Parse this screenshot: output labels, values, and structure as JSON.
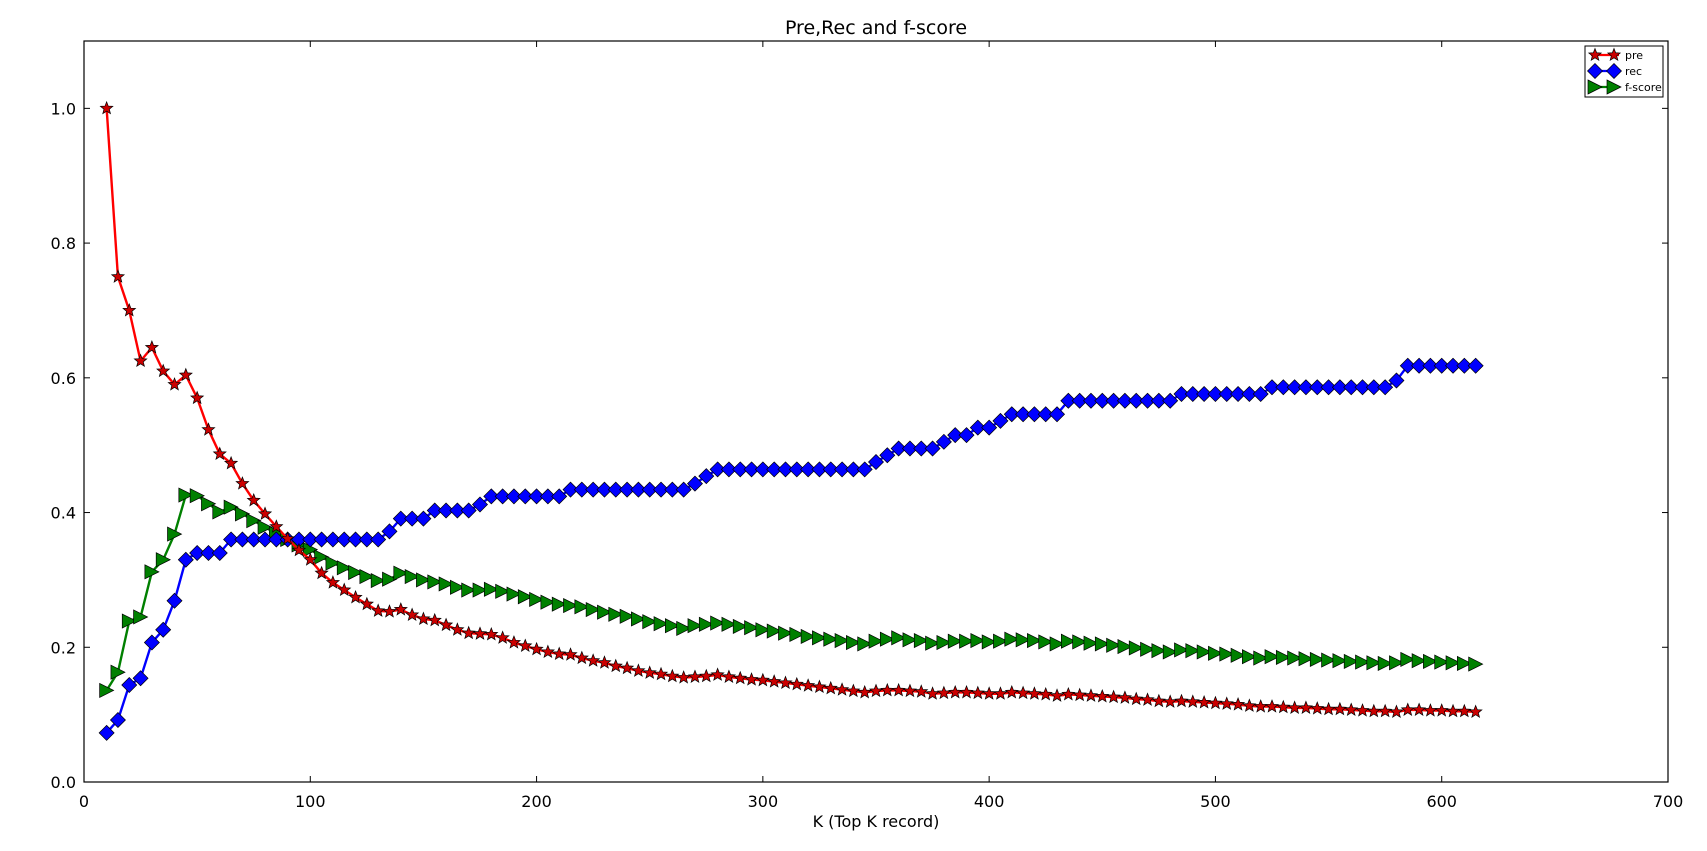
{
  "chart_data": {
    "type": "line",
    "title": "Pre,Rec and f-score",
    "xlabel": "K (Top K record)",
    "ylabel": "",
    "xlim": [
      0,
      700
    ],
    "ylim": [
      0,
      1.1
    ],
    "x_ticks": [
      0,
      100,
      200,
      300,
      400,
      500,
      600,
      700
    ],
    "y_ticks": [
      0.0,
      0.2,
      0.4,
      0.6,
      0.8,
      1.0
    ],
    "grid": false,
    "legend_position": "top-right",
    "x": [
      10,
      15,
      20,
      25,
      30,
      35,
      40,
      45,
      50,
      55,
      60,
      65,
      70,
      75,
      80,
      85,
      90,
      95,
      100,
      105,
      110,
      115,
      120,
      125,
      130,
      135,
      140,
      145,
      150,
      155,
      160,
      165,
      170,
      175,
      180,
      185,
      190,
      195,
      200,
      205,
      210,
      215,
      220,
      225,
      230,
      235,
      240,
      245,
      250,
      255,
      260,
      265,
      270,
      275,
      280,
      285,
      290,
      295,
      300,
      305,
      310,
      315,
      320,
      325,
      330,
      335,
      340,
      345,
      350,
      355,
      360,
      365,
      370,
      375,
      380,
      385,
      390,
      395,
      400,
      405,
      410,
      415,
      420,
      425,
      430,
      435,
      440,
      445,
      450,
      455,
      460,
      465,
      470,
      475,
      480,
      485,
      490,
      495,
      500,
      505,
      510,
      515,
      520,
      525,
      530,
      535,
      540,
      545,
      550,
      555,
      560,
      565,
      570,
      575,
      580,
      585,
      590,
      595,
      600,
      605,
      610,
      615
    ],
    "series": [
      {
        "name": "pre",
        "color": "#ff0000",
        "marker": "star",
        "marker_color": "#cc0000",
        "values": [
          1.0,
          0.75,
          0.7,
          0.625,
          0.645,
          0.61,
          0.59,
          0.604,
          0.57,
          0.523,
          0.487,
          0.473,
          0.443,
          0.418,
          0.398,
          0.379,
          0.361,
          0.344,
          0.33,
          0.31,
          0.296,
          0.285,
          0.274,
          0.264,
          0.254,
          0.253,
          0.256,
          0.248,
          0.242,
          0.24,
          0.233,
          0.226,
          0.221,
          0.22,
          0.219,
          0.214,
          0.207,
          0.202,
          0.197,
          0.193,
          0.19,
          0.189,
          0.184,
          0.18,
          0.177,
          0.172,
          0.169,
          0.165,
          0.162,
          0.16,
          0.157,
          0.155,
          0.156,
          0.157,
          0.159,
          0.156,
          0.154,
          0.152,
          0.151,
          0.149,
          0.147,
          0.145,
          0.143,
          0.141,
          0.139,
          0.137,
          0.135,
          0.133,
          0.135,
          0.136,
          0.136,
          0.135,
          0.134,
          0.131,
          0.132,
          0.133,
          0.133,
          0.132,
          0.131,
          0.131,
          0.133,
          0.132,
          0.131,
          0.13,
          0.128,
          0.13,
          0.129,
          0.128,
          0.127,
          0.126,
          0.125,
          0.123,
          0.122,
          0.12,
          0.119,
          0.12,
          0.119,
          0.118,
          0.117,
          0.116,
          0.115,
          0.113,
          0.112,
          0.112,
          0.111,
          0.11,
          0.11,
          0.109,
          0.108,
          0.108,
          0.107,
          0.106,
          0.105,
          0.105,
          0.104,
          0.107,
          0.107,
          0.106,
          0.106,
          0.105,
          0.105,
          0.104
        ]
      },
      {
        "name": "rec",
        "color": "#0000ff",
        "marker": "diamond",
        "marker_color": "#0000ff",
        "values": [
          0.073,
          0.092,
          0.144,
          0.154,
          0.207,
          0.226,
          0.269,
          0.33,
          0.34,
          0.34,
          0.34,
          0.36,
          0.36,
          0.36,
          0.36,
          0.36,
          0.36,
          0.36,
          0.36,
          0.36,
          0.36,
          0.36,
          0.36,
          0.36,
          0.36,
          0.372,
          0.391,
          0.391,
          0.391,
          0.403,
          0.403,
          0.403,
          0.403,
          0.412,
          0.424,
          0.424,
          0.424,
          0.424,
          0.424,
          0.424,
          0.424,
          0.434,
          0.434,
          0.434,
          0.434,
          0.434,
          0.434,
          0.434,
          0.434,
          0.434,
          0.434,
          0.434,
          0.443,
          0.454,
          0.464,
          0.464,
          0.464,
          0.464,
          0.464,
          0.464,
          0.464,
          0.464,
          0.464,
          0.464,
          0.464,
          0.464,
          0.464,
          0.464,
          0.475,
          0.485,
          0.495,
          0.495,
          0.495,
          0.495,
          0.505,
          0.515,
          0.515,
          0.526,
          0.526,
          0.536,
          0.546,
          0.546,
          0.546,
          0.546,
          0.546,
          0.566,
          0.566,
          0.566,
          0.566,
          0.566,
          0.566,
          0.566,
          0.566,
          0.566,
          0.566,
          0.576,
          0.576,
          0.576,
          0.576,
          0.576,
          0.576,
          0.576,
          0.576,
          0.586,
          0.586,
          0.586,
          0.586,
          0.586,
          0.586,
          0.586,
          0.586,
          0.586,
          0.586,
          0.586,
          0.596,
          0.618,
          0.618,
          0.618,
          0.618,
          0.618,
          0.618,
          0.618
        ]
      },
      {
        "name": "f-score",
        "color": "#008000",
        "marker": "triangle-right",
        "marker_color": "#008000",
        "values": [
          0.136,
          0.163,
          0.239,
          0.245,
          0.312,
          0.33,
          0.368,
          0.426,
          0.425,
          0.413,
          0.401,
          0.408,
          0.398,
          0.388,
          0.378,
          0.369,
          0.36,
          0.352,
          0.345,
          0.334,
          0.325,
          0.318,
          0.311,
          0.305,
          0.299,
          0.301,
          0.31,
          0.305,
          0.3,
          0.297,
          0.294,
          0.289,
          0.285,
          0.285,
          0.286,
          0.283,
          0.279,
          0.275,
          0.271,
          0.267,
          0.264,
          0.262,
          0.26,
          0.256,
          0.252,
          0.249,
          0.246,
          0.242,
          0.238,
          0.235,
          0.232,
          0.228,
          0.232,
          0.234,
          0.236,
          0.234,
          0.231,
          0.229,
          0.226,
          0.224,
          0.221,
          0.219,
          0.216,
          0.214,
          0.212,
          0.21,
          0.207,
          0.205,
          0.209,
          0.212,
          0.214,
          0.211,
          0.21,
          0.206,
          0.207,
          0.209,
          0.209,
          0.21,
          0.208,
          0.209,
          0.212,
          0.211,
          0.21,
          0.208,
          0.205,
          0.209,
          0.208,
          0.206,
          0.205,
          0.203,
          0.201,
          0.199,
          0.197,
          0.195,
          0.193,
          0.196,
          0.195,
          0.193,
          0.191,
          0.19,
          0.188,
          0.186,
          0.184,
          0.186,
          0.185,
          0.184,
          0.183,
          0.182,
          0.181,
          0.18,
          0.179,
          0.178,
          0.177,
          0.176,
          0.177,
          0.182,
          0.18,
          0.179,
          0.178,
          0.177,
          0.176,
          0.175
        ]
      }
    ]
  }
}
